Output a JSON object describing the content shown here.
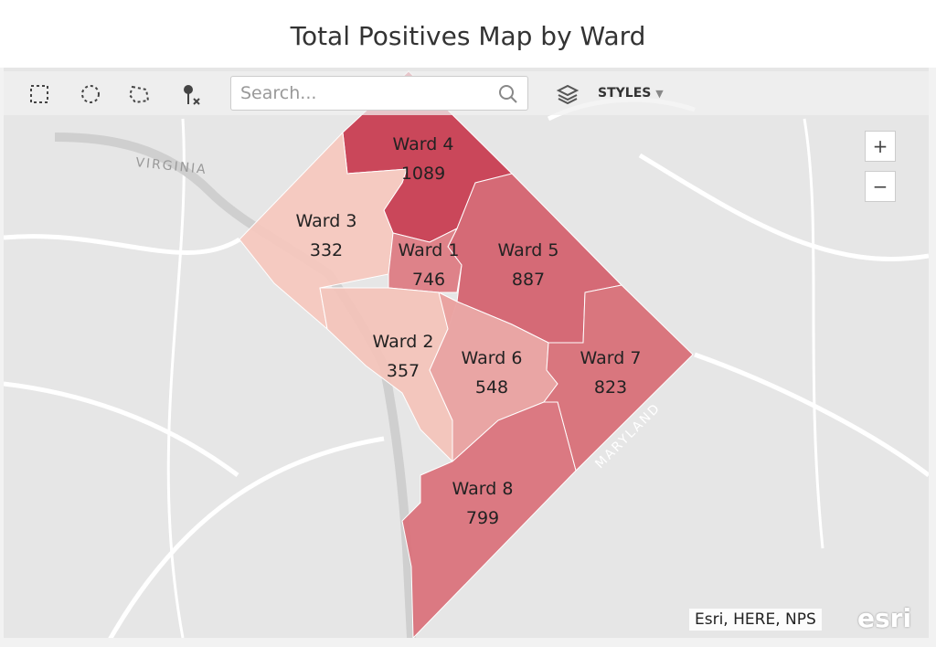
{
  "header": {
    "title": "Total Positives Map by Ward"
  },
  "toolbar": {
    "search_placeholder": "Search...",
    "styles": "STYLES"
  },
  "map": {
    "zoom_in": "+",
    "zoom_out": "−",
    "labels": [
      "VIRGINIA",
      "MARYLAND"
    ],
    "attribution": "Esri, HERE, NPS",
    "logo": "esri",
    "wards": [
      {
        "name": "Ward 4",
        "value": 1089
      },
      {
        "name": "Ward 5",
        "value": 887
      },
      {
        "name": "Ward 3",
        "value": 332
      },
      {
        "name": "Ward 1",
        "value": 746
      },
      {
        "name": "Ward 2",
        "value": 357
      },
      {
        "name": "Ward 6",
        "value": 548
      },
      {
        "name": "Ward 7",
        "value": 823
      },
      {
        "name": "Ward 8",
        "value": 799
      }
    ]
  }
}
